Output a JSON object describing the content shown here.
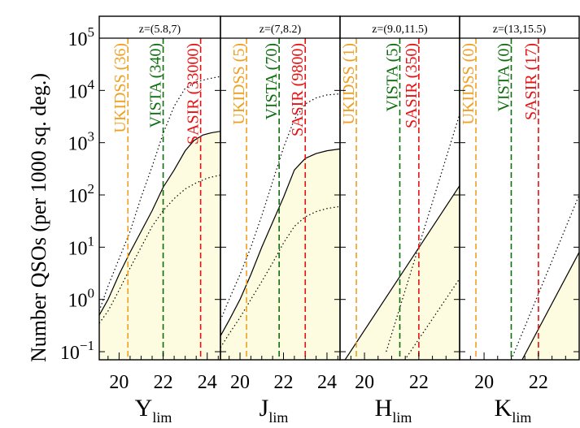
{
  "chart_data": {
    "type": "line",
    "ylabel": "Number QSOs (per 1000 sq. deg.)",
    "yscale": "log",
    "ylim": [
      0.07,
      100000
    ],
    "yticks": [
      {
        "value": 0.1,
        "base": "10",
        "exp": "−1"
      },
      {
        "value": 1,
        "base": "10",
        "exp": "0"
      },
      {
        "value": 10,
        "base": "10",
        "exp": "1"
      },
      {
        "value": 100,
        "base": "10",
        "exp": "2"
      },
      {
        "value": 1000,
        "base": "10",
        "exp": "3"
      },
      {
        "value": 10000,
        "base": "10",
        "exp": "4"
      },
      {
        "value": 100000,
        "base": "10",
        "exp": "5"
      }
    ],
    "colors": {
      "UKIDSS": "#f0a020",
      "VISTA": "#0c6e0c",
      "SASIR": "#e81010",
      "fill": "#fdfbe0"
    },
    "panels": [
      {
        "title": "z=(5.8,7)",
        "xbase": "Y",
        "xsub": "lim",
        "xlim": [
          19.1,
          24.6
        ],
        "xticks": [
          "20",
          "22",
          "24"
        ],
        "xtick_values": [
          20,
          22,
          24
        ],
        "surveys": [
          {
            "key": "UKIDSS",
            "label": "UKIDSS (36)",
            "x": 20.4
          },
          {
            "key": "VISTA",
            "label": "VISTA (340)",
            "x": 22.0
          },
          {
            "key": "SASIR",
            "label": "SASIR (33000)",
            "x": 23.7
          }
        ],
        "main": {
          "x": [
            19.1,
            19.5,
            20,
            20.5,
            21,
            21.5,
            22,
            22.5,
            23,
            23.4,
            23.8,
            24.2,
            24.6
          ],
          "y": [
            0.5,
            1.0,
            3.0,
            8.0,
            20,
            50,
            140,
            300,
            700,
            1100,
            1400,
            1550,
            1650
          ]
        },
        "upper": {
          "x": [
            19.1,
            19.5,
            20,
            20.5,
            21,
            21.5,
            22,
            22.5,
            23,
            23.5,
            24,
            24.6
          ],
          "y": [
            0.6,
            1.8,
            6,
            20,
            90,
            350,
            1500,
            5000,
            11000,
            14500,
            16500,
            18500
          ]
        },
        "lower": {
          "x": [
            19.1,
            19.5,
            20,
            20.5,
            21,
            21.5,
            22,
            22.5,
            23,
            23.5,
            24,
            24.6
          ],
          "y": [
            0.35,
            0.6,
            1.5,
            4,
            10,
            25,
            50,
            85,
            130,
            170,
            210,
            240
          ]
        }
      },
      {
        "title": "z=(7,8.2)",
        "xbase": "J",
        "xsub": "lim",
        "xlim": [
          19.1,
          24.6
        ],
        "xticks": [
          "20",
          "22",
          "24"
        ],
        "xtick_values": [
          20,
          22,
          24
        ],
        "surveys": [
          {
            "key": "UKIDSS",
            "label": "UKIDSS (5)",
            "x": 20.3
          },
          {
            "key": "VISTA",
            "label": "VISTA (70)",
            "x": 21.8
          },
          {
            "key": "SASIR",
            "label": "SASIR (9800)",
            "x": 23.0
          }
        ],
        "main": {
          "x": [
            19.1,
            19.5,
            20,
            20.5,
            21,
            21.5,
            22,
            22.5,
            23,
            23.5,
            24,
            24.6
          ],
          "y": [
            0.2,
            0.4,
            1.0,
            3.0,
            10,
            30,
            90,
            300,
            500,
            620,
            700,
            760
          ]
        },
        "upper": {
          "x": [
            19.1,
            19.5,
            20,
            20.5,
            21,
            21.5,
            22,
            22.5,
            23,
            23.5,
            24,
            24.6
          ],
          "y": [
            0.4,
            1.0,
            3.0,
            10,
            40,
            180,
            800,
            2800,
            5500,
            7200,
            8200,
            8600
          ]
        },
        "lower": {
          "x": [
            19.1,
            19.5,
            20,
            20.5,
            21,
            21.5,
            22,
            22.5,
            23,
            23.5,
            24,
            24.6
          ],
          "y": [
            0.12,
            0.22,
            0.45,
            1.0,
            2.2,
            5,
            12,
            25,
            38,
            48,
            55,
            60
          ]
        }
      },
      {
        "title": "z=(9.0,11.5)",
        "xbase": "H",
        "xsub": "lim",
        "xlim": [
          19.1,
          23.5
        ],
        "xticks": [
          "20",
          "22"
        ],
        "xtick_values": [
          20,
          22
        ],
        "surveys": [
          {
            "key": "UKIDSS",
            "label": "UKIDSS (1)",
            "x": 19.7
          },
          {
            "key": "VISTA",
            "label": "VISTA (5)",
            "x": 21.3
          },
          {
            "key": "SASIR",
            "label": "SASIR (350)",
            "x": 22.0
          }
        ],
        "main": {
          "x": [
            19.2,
            23.5
          ],
          "y": [
            0.06,
            150
          ]
        },
        "upper": {
          "x": [
            20.8,
            23.5
          ],
          "y": [
            0.1,
            3500
          ]
        },
        "lower": {
          "x": [
            21.4,
            23.5
          ],
          "y": [
            0.06,
            2.5
          ]
        }
      },
      {
        "title": "z=(13,15.5)",
        "xbase": "K",
        "xsub": "lim",
        "xlim": [
          19.1,
          23.5
        ],
        "xticks": [
          "20",
          "22"
        ],
        "xtick_values": [
          20,
          22
        ],
        "surveys": [
          {
            "key": "UKIDSS",
            "label": "UKIDSS (0)",
            "x": 19.7
          },
          {
            "key": "VISTA",
            "label": "VISTA (0)",
            "x": 21.0
          },
          {
            "key": "SASIR",
            "label": "SASIR (17)",
            "x": 22.0
          }
        ],
        "main": {
          "x": [
            21.4,
            23.5
          ],
          "y": [
            0.07,
            8
          ]
        },
        "upper": {
          "x": [
            21.0,
            23.5
          ],
          "y": [
            0.07,
            100
          ]
        },
        "lower": null
      }
    ]
  }
}
